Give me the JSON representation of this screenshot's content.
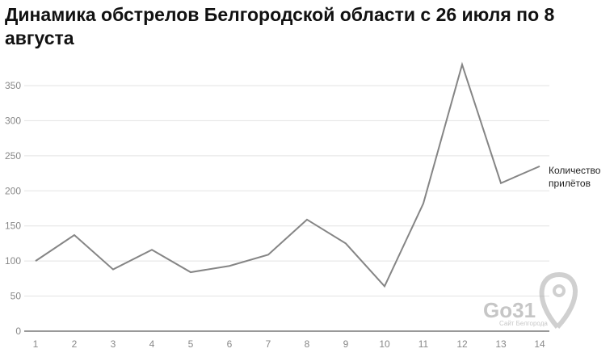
{
  "chart_data": {
    "type": "line",
    "title": "Динамика обстрелов Белгородской области с 26 июля по 8 августа",
    "categories": [
      "1",
      "2",
      "3",
      "4",
      "5",
      "6",
      "7",
      "8",
      "9",
      "10",
      "11",
      "12",
      "13",
      "14"
    ],
    "series": [
      {
        "name": "Количество прилётов",
        "values": [
          100,
          137,
          88,
          116,
          84,
          93,
          109,
          159,
          125,
          64,
          182,
          380,
          211,
          235
        ],
        "color": "#858585"
      }
    ],
    "yticks": [
      0,
      50,
      100,
      150,
      200,
      250,
      300,
      350
    ],
    "ylim": [
      0,
      350
    ],
    "grid": true,
    "legend": "inline-right"
  },
  "watermark": {
    "logo": "Go31",
    "subtitle": "Сайт Белгорода"
  }
}
